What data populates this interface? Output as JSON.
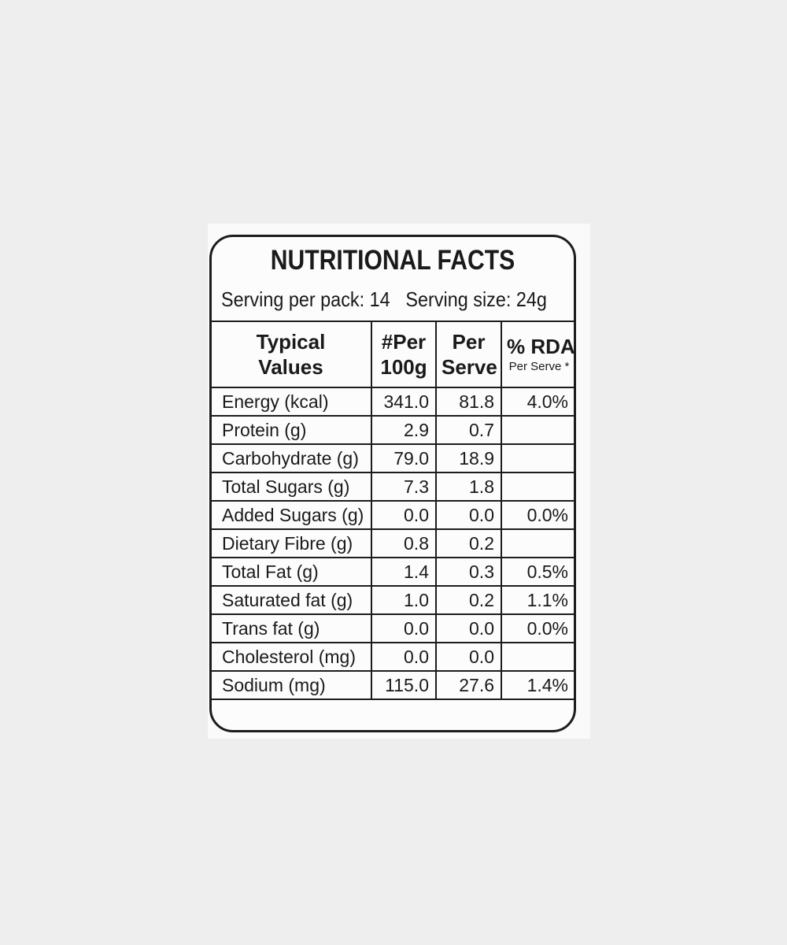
{
  "label": {
    "title": "NUTRITIONAL FACTS",
    "serving_per_pack": "Serving per pack: 14",
    "serving_size": "Serving size: 24g"
  },
  "table": {
    "headers": {
      "typical_line1": "Typical",
      "typical_line2": "Values",
      "per100_line1": "#Per",
      "per100_line2": "100g",
      "perserve_line1": "Per",
      "perserve_line2": "Serve",
      "rda_line1": "% RDA",
      "rda_line2": "Per Serve *"
    },
    "rows": [
      {
        "name": "Energy (kcal)",
        "per100g": "341.0",
        "per_serve": "81.8",
        "rda": "4.0%"
      },
      {
        "name": "Protein (g)",
        "per100g": "2.9",
        "per_serve": "0.7",
        "rda": ""
      },
      {
        "name": "Carbohydrate (g)",
        "per100g": "79.0",
        "per_serve": "18.9",
        "rda": ""
      },
      {
        "name": "Total Sugars (g)",
        "per100g": "7.3",
        "per_serve": "1.8",
        "rda": ""
      },
      {
        "name": "Added Sugars (g)",
        "per100g": "0.0",
        "per_serve": "0.0",
        "rda": "0.0%"
      },
      {
        "name": "Dietary Fibre (g)",
        "per100g": "0.8",
        "per_serve": "0.2",
        "rda": ""
      },
      {
        "name": "Total Fat (g)",
        "per100g": "1.4",
        "per_serve": "0.3",
        "rda": "0.5%"
      },
      {
        "name": "Saturated fat (g)",
        "per100g": "1.0",
        "per_serve": "0.2",
        "rda": "1.1%"
      },
      {
        "name": "Trans fat (g)",
        "per100g": "0.0",
        "per_serve": "0.0",
        "rda": "0.0%"
      },
      {
        "name": "Cholesterol (mg)",
        "per100g": "0.0",
        "per_serve": "0.0",
        "rda": ""
      },
      {
        "name": "Sodium (mg)",
        "per100g": "115.0",
        "per_serve": "27.6",
        "rda": "1.4%"
      }
    ]
  }
}
